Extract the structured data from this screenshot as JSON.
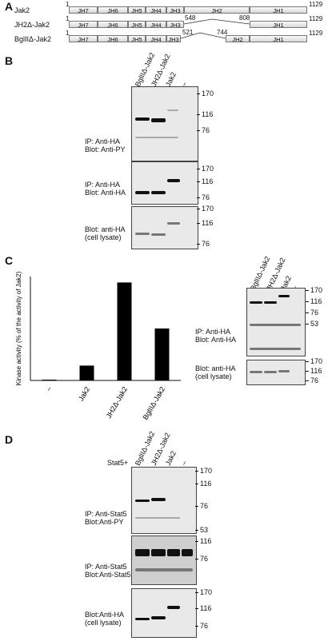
{
  "panels": {
    "a": "A",
    "b": "B",
    "c": "C",
    "d": "D"
  },
  "panel_a": {
    "constructs": [
      {
        "name": "Jak2",
        "start": "1",
        "end": "1129"
      },
      {
        "name": "JH2Δ-Jak2",
        "start": "1",
        "end": "1129",
        "gap_start": "548",
        "gap_end": "808"
      },
      {
        "name": "BglIIΔ-Jak2",
        "start": "1",
        "end": "1129",
        "gap_start": "521",
        "gap_end": "744"
      }
    ],
    "domains": [
      "JH7",
      "JH6",
      "JH5",
      "JH4",
      "JH3",
      "JH2",
      "JH1"
    ]
  },
  "lanes_bd": [
    "BglIIΔ-Jak2",
    "JH2Δ-Jak2",
    "Jak2",
    "−"
  ],
  "panel_b": {
    "blots": [
      {
        "label1": "IP: Anti-HA",
        "label2": "Blot: Anti-PY",
        "mw": [
          "170",
          "116",
          "76"
        ]
      },
      {
        "label1": "IP: Anti-HA",
        "label2": "Blot: Anti-HA",
        "mw": [
          "170",
          "116",
          "76"
        ]
      },
      {
        "label1": "Blot: anti-HA",
        "label2": "(cell lysate)",
        "mw": [
          "170",
          "116",
          "76"
        ]
      }
    ]
  },
  "chart_data": {
    "type": "bar",
    "categories": [
      "−",
      "Jak2",
      "JH2Δ-Jak2",
      "BglIIΔ-Jak2"
    ],
    "values": [
      0.02,
      1.0,
      6.6,
      3.5
    ],
    "ylabel": "Kinase activity (% of the activity of Jak2)",
    "ylim": [
      0,
      7
    ]
  },
  "panel_c_blots": {
    "blot1": {
      "label1": "IP: Anti-HA",
      "label2": "Blot: Anti-HA",
      "mw": [
        "170",
        "116",
        "76",
        "53"
      ]
    },
    "blot2": {
      "label1": "Blot: anti-HA",
      "label2": "(cell lysate)",
      "mw": [
        "170",
        "116",
        "76"
      ]
    }
  },
  "panel_d": {
    "stat_label": "Stat5+",
    "blots": [
      {
        "label1": "IP: Anti-Stat5",
        "label2": "Blot:Anti-PY",
        "mw": [
          "170",
          "116",
          "76",
          "53"
        ]
      },
      {
        "label1": "IP: Anti-Stat5",
        "label2": "Blot:Anti-Stat5",
        "mw": [
          "116",
          "76"
        ]
      },
      {
        "label1": "Blot:Anti-HA",
        "label2": "(cell lysate)",
        "mw": [
          "170",
          "116",
          "76"
        ]
      }
    ]
  }
}
